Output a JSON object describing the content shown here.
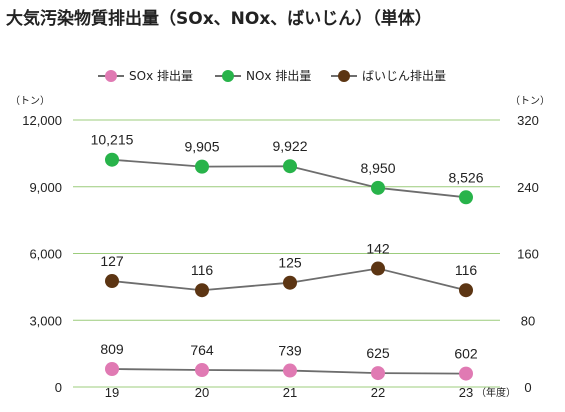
{
  "chart_data": {
    "type": "line",
    "title": "大気汚染物質排出量（SOx、NOx、ばいじん）（単体）",
    "categories": [
      "19",
      "20",
      "21",
      "22",
      "23"
    ],
    "x_unit": "（年度）",
    "left_axis": {
      "unit": "（トン）",
      "range": [
        0,
        12000
      ],
      "ticks": [
        "0",
        "3,000",
        "6,000",
        "9,000",
        "12,000"
      ]
    },
    "right_axis": {
      "unit": "（トン）",
      "range": [
        0,
        320
      ],
      "ticks": [
        "0",
        "80",
        "160",
        "240",
        "320"
      ]
    },
    "grid": true,
    "legend_position": "top-center",
    "series": [
      {
        "name": "SOx 排出量",
        "axis": "left",
        "color": "#e07ab3",
        "values": [
          809,
          764,
          739,
          625,
          602
        ],
        "labels": [
          "809",
          "764",
          "739",
          "625",
          "602"
        ]
      },
      {
        "name": "NOx 排出量",
        "axis": "left",
        "color": "#28b34a",
        "values": [
          10215,
          9905,
          9922,
          8950,
          8526
        ],
        "labels": [
          "10,215",
          "9,905",
          "9,922",
          "8,950",
          "8,526"
        ]
      },
      {
        "name": "ばいじん排出量",
        "axis": "right",
        "color": "#5c3513",
        "values": [
          127,
          116,
          125,
          142,
          116
        ],
        "labels": [
          "127",
          "116",
          "125",
          "142",
          "116"
        ]
      }
    ]
  }
}
